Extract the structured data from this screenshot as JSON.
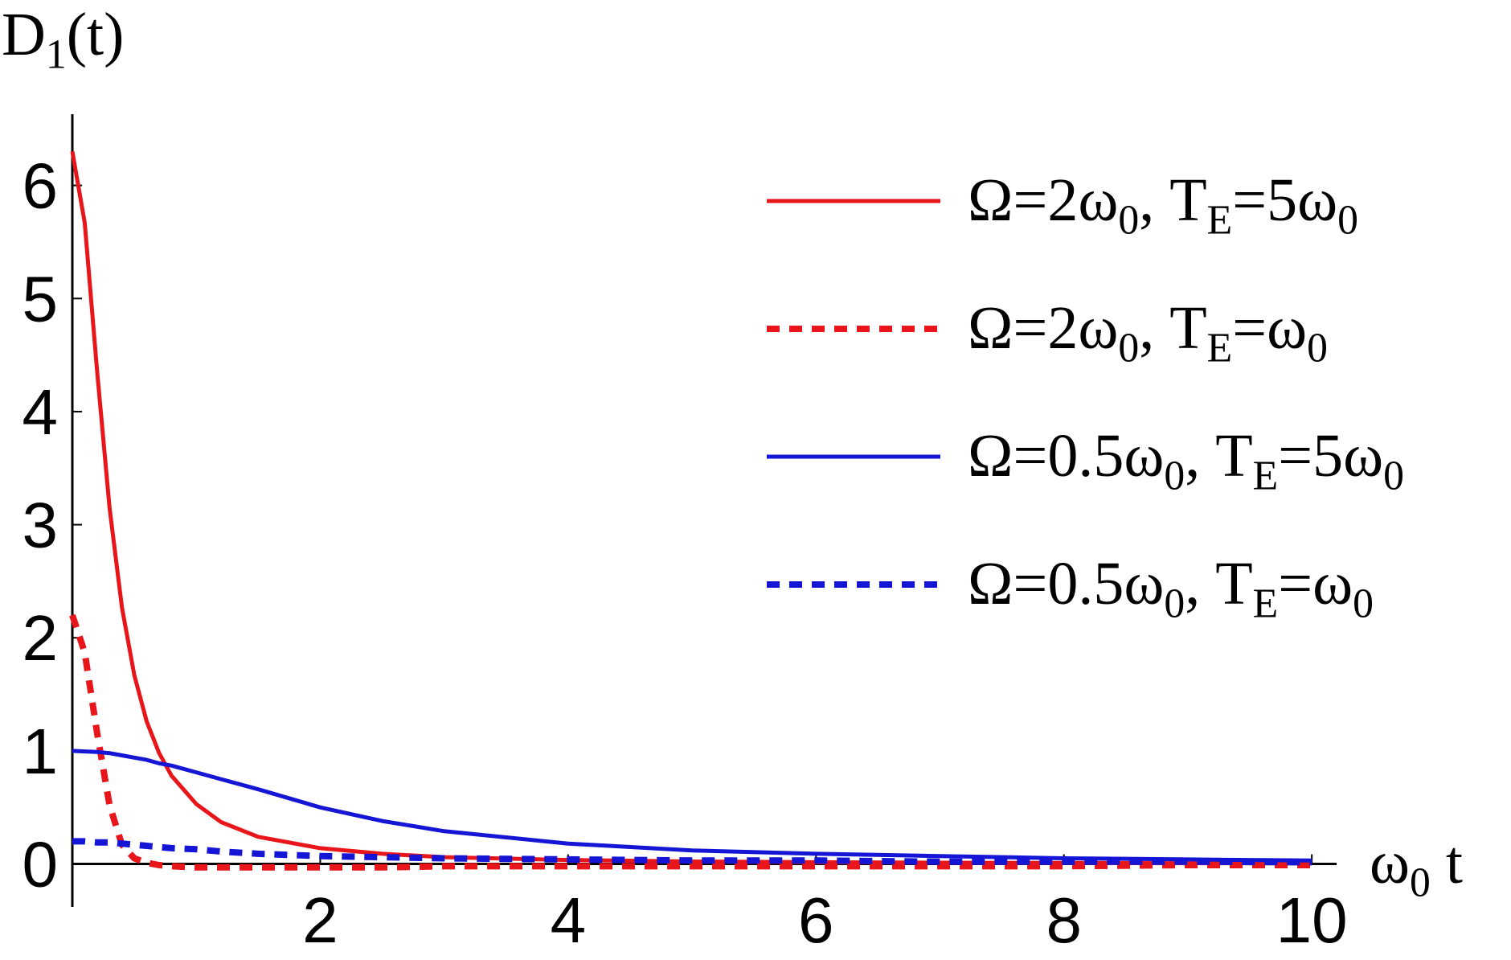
{
  "chart_data": {
    "type": "line",
    "title": "D1(t)",
    "x_label": "ω0 t",
    "x": [
      0,
      0.1,
      0.2,
      0.3,
      0.4,
      0.5,
      0.6,
      0.7,
      0.8,
      1,
      1.2,
      1.5,
      2,
      2.5,
      3,
      4,
      5,
      6,
      7,
      8,
      9,
      10
    ],
    "series": [
      {
        "name": "Ω=2ω0, TE=5ω0",
        "color": "#e8161b",
        "dashed": false,
        "values": [
          6.3,
          5.67,
          4.36,
          3.15,
          2.27,
          1.67,
          1.26,
          0.98,
          0.78,
          0.53,
          0.37,
          0.24,
          0.14,
          0.09,
          0.06,
          0.035,
          0.022,
          0.015,
          0.011,
          0.009,
          0.007,
          0.006
        ]
      },
      {
        "name": "Ω=2ω0, TE=ω0",
        "color": "#e8161b",
        "dashed": true,
        "values": [
          2.2,
          1.87,
          1.16,
          0.52,
          0.17,
          0.05,
          0.01,
          -0.01,
          -0.02,
          -0.03,
          -0.03,
          -0.03,
          -0.03,
          -0.03,
          -0.02,
          -0.02,
          -0.02,
          -0.02,
          -0.02,
          -0.02,
          -0.01,
          -0.01
        ]
      },
      {
        "name": "Ω=0.5ω0, TE=5ω0",
        "color": "#1515d6",
        "dashed": false,
        "values": [
          1.0,
          0.995,
          0.99,
          0.98,
          0.96,
          0.94,
          0.92,
          0.89,
          0.87,
          0.81,
          0.75,
          0.66,
          0.5,
          0.38,
          0.29,
          0.18,
          0.12,
          0.09,
          0.07,
          0.05,
          0.04,
          0.03
        ]
      },
      {
        "name": "Ω=0.5ω0, TE=ω0",
        "color": "#1515d6",
        "dashed": true,
        "values": [
          0.2,
          0.2,
          0.19,
          0.19,
          0.18,
          0.17,
          0.16,
          0.15,
          0.14,
          0.13,
          0.11,
          0.09,
          0.07,
          0.06,
          0.05,
          0.04,
          0.03,
          0.03,
          0.02,
          0.02,
          0.02,
          0.015
        ]
      }
    ],
    "xlim": [
      0,
      10.2
    ],
    "ylim": [
      -0.38,
      6.63
    ],
    "xticks": [
      2,
      4,
      6,
      8,
      10
    ],
    "yticks": [
      0,
      1,
      2,
      3,
      4,
      5,
      6
    ],
    "grid": false,
    "legend": "upper right"
  }
}
